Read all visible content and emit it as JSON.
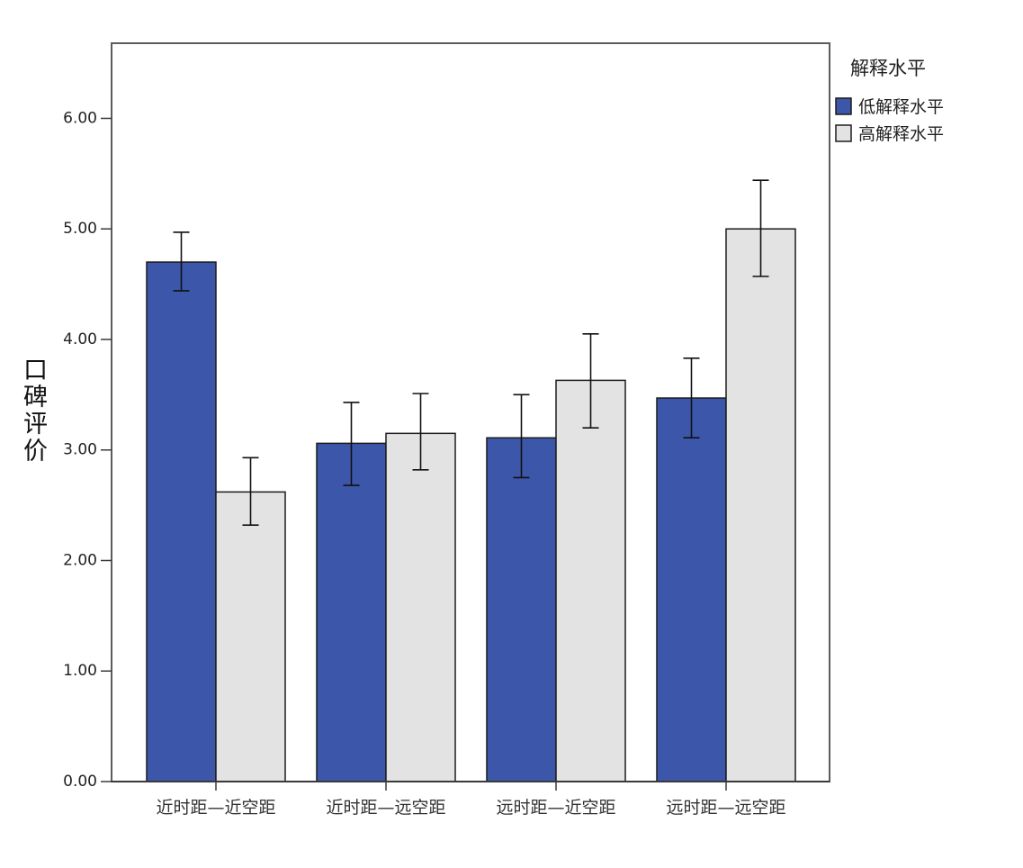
{
  "chart_data": {
    "type": "bar",
    "title": "",
    "xlabel": "",
    "ylabel": "口碑评价",
    "categories": [
      "近时距—近空距",
      "近时距—远空距",
      "远时距—近空距",
      "远时距—远空距"
    ],
    "series": [
      {
        "name": "低解释水平",
        "color": "#3c56a9",
        "values": [
          4.7,
          3.06,
          3.11,
          3.47
        ],
        "error_upper": [
          4.97,
          3.43,
          3.5,
          3.83
        ],
        "error_lower": [
          4.44,
          2.68,
          2.75,
          3.11
        ]
      },
      {
        "name": "高解释水平",
        "color": "#e3e3e3",
        "values": [
          2.62,
          3.15,
          3.63,
          5.0
        ],
        "error_upper": [
          2.93,
          3.51,
          4.05,
          5.44
        ],
        "error_lower": [
          2.32,
          2.82,
          3.2,
          4.57
        ]
      }
    ],
    "ylim": [
      0,
      6.68
    ],
    "y_ticks": [
      0,
      1,
      2,
      3,
      4,
      5,
      6
    ],
    "y_tick_labels": [
      "0.00",
      "1.00",
      "2.00",
      "3.00",
      "4.00",
      "5.00",
      "6.00"
    ],
    "grid": false,
    "legend": {
      "title": "解释水平",
      "position": "right"
    }
  }
}
